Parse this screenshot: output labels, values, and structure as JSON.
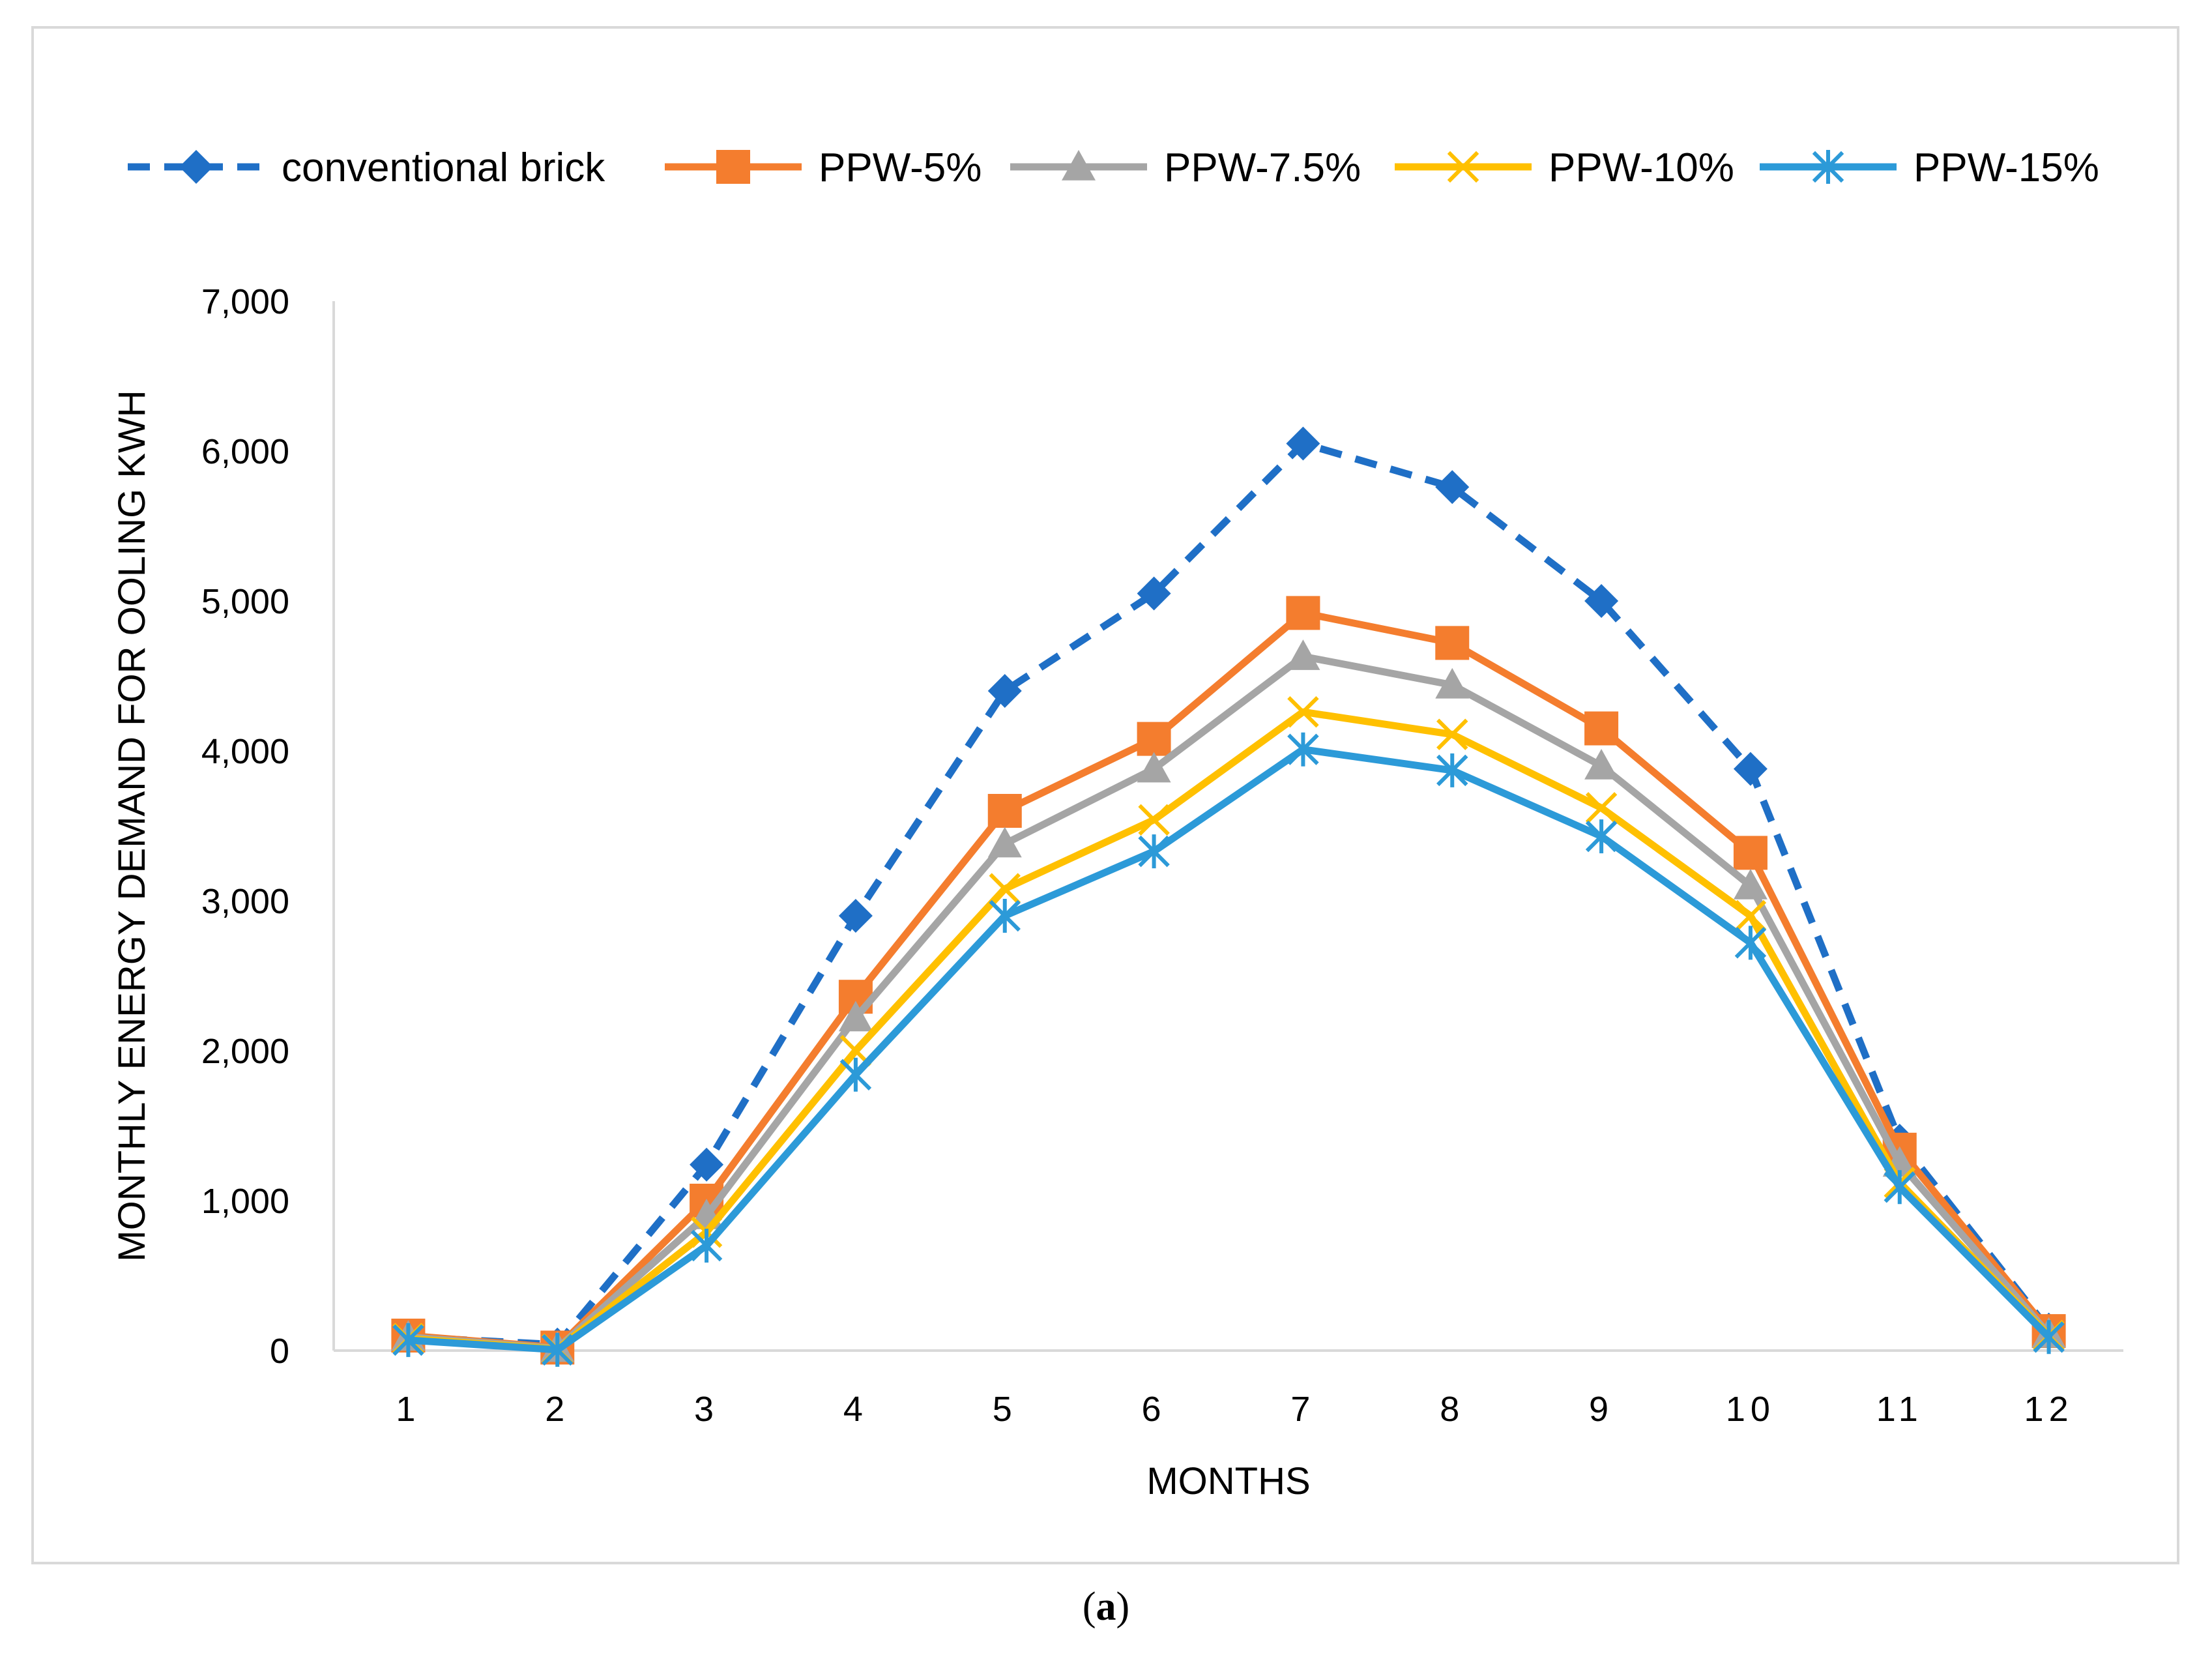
{
  "chart_data": {
    "type": "line",
    "title": "",
    "xlabel": "MONTHS",
    "ylabel": "MONTHLY ENERGY DEMAND FOR OOLING KWH",
    "categories": [
      "1",
      "2",
      "3",
      "4",
      "5",
      "6",
      "7",
      "8",
      "9",
      "10",
      "11",
      "12"
    ],
    "ylim": [
      0,
      7000
    ],
    "yticks": [
      "0",
      "1,000",
      "2,000",
      "3,000",
      "4,000",
      "5,000",
      "6,000",
      "7,000"
    ],
    "grid": false,
    "legend_position": "top",
    "series": [
      {
        "name": "conventional brick",
        "color": "#1f6fc6",
        "marker": "diamond",
        "dash": true,
        "values": [
          90,
          40,
          1240,
          2900,
          4400,
          5050,
          6050,
          5760,
          5000,
          3880,
          1400,
          140
        ]
      },
      {
        "name": "PPW-5%",
        "color": "#f47d2e",
        "marker": "square",
        "dash": false,
        "values": [
          100,
          20,
          1000,
          2360,
          3600,
          4080,
          4920,
          4720,
          4150,
          3320,
          1340,
          130
        ]
      },
      {
        "name": "PPW-7.5%",
        "color": "#a5a5a5",
        "marker": "triangle",
        "dash": false,
        "values": [
          90,
          15,
          900,
          2220,
          3380,
          3880,
          4630,
          4440,
          3900,
          3100,
          1250,
          110
        ]
      },
      {
        "name": "PPW-10%",
        "color": "#ffc000",
        "marker": "x",
        "dash": false,
        "values": [
          80,
          10,
          790,
          2000,
          3080,
          3540,
          4260,
          4110,
          3620,
          2900,
          1120,
          100
        ]
      },
      {
        "name": "PPW-15%",
        "color": "#2c9ad8",
        "marker": "asterisk",
        "dash": false,
        "values": [
          70,
          5,
          700,
          1840,
          2900,
          3330,
          4010,
          3870,
          3430,
          2720,
          1090,
          90
        ]
      }
    ]
  },
  "caption": {
    "open": "(",
    "label": "a",
    "close": ")"
  }
}
